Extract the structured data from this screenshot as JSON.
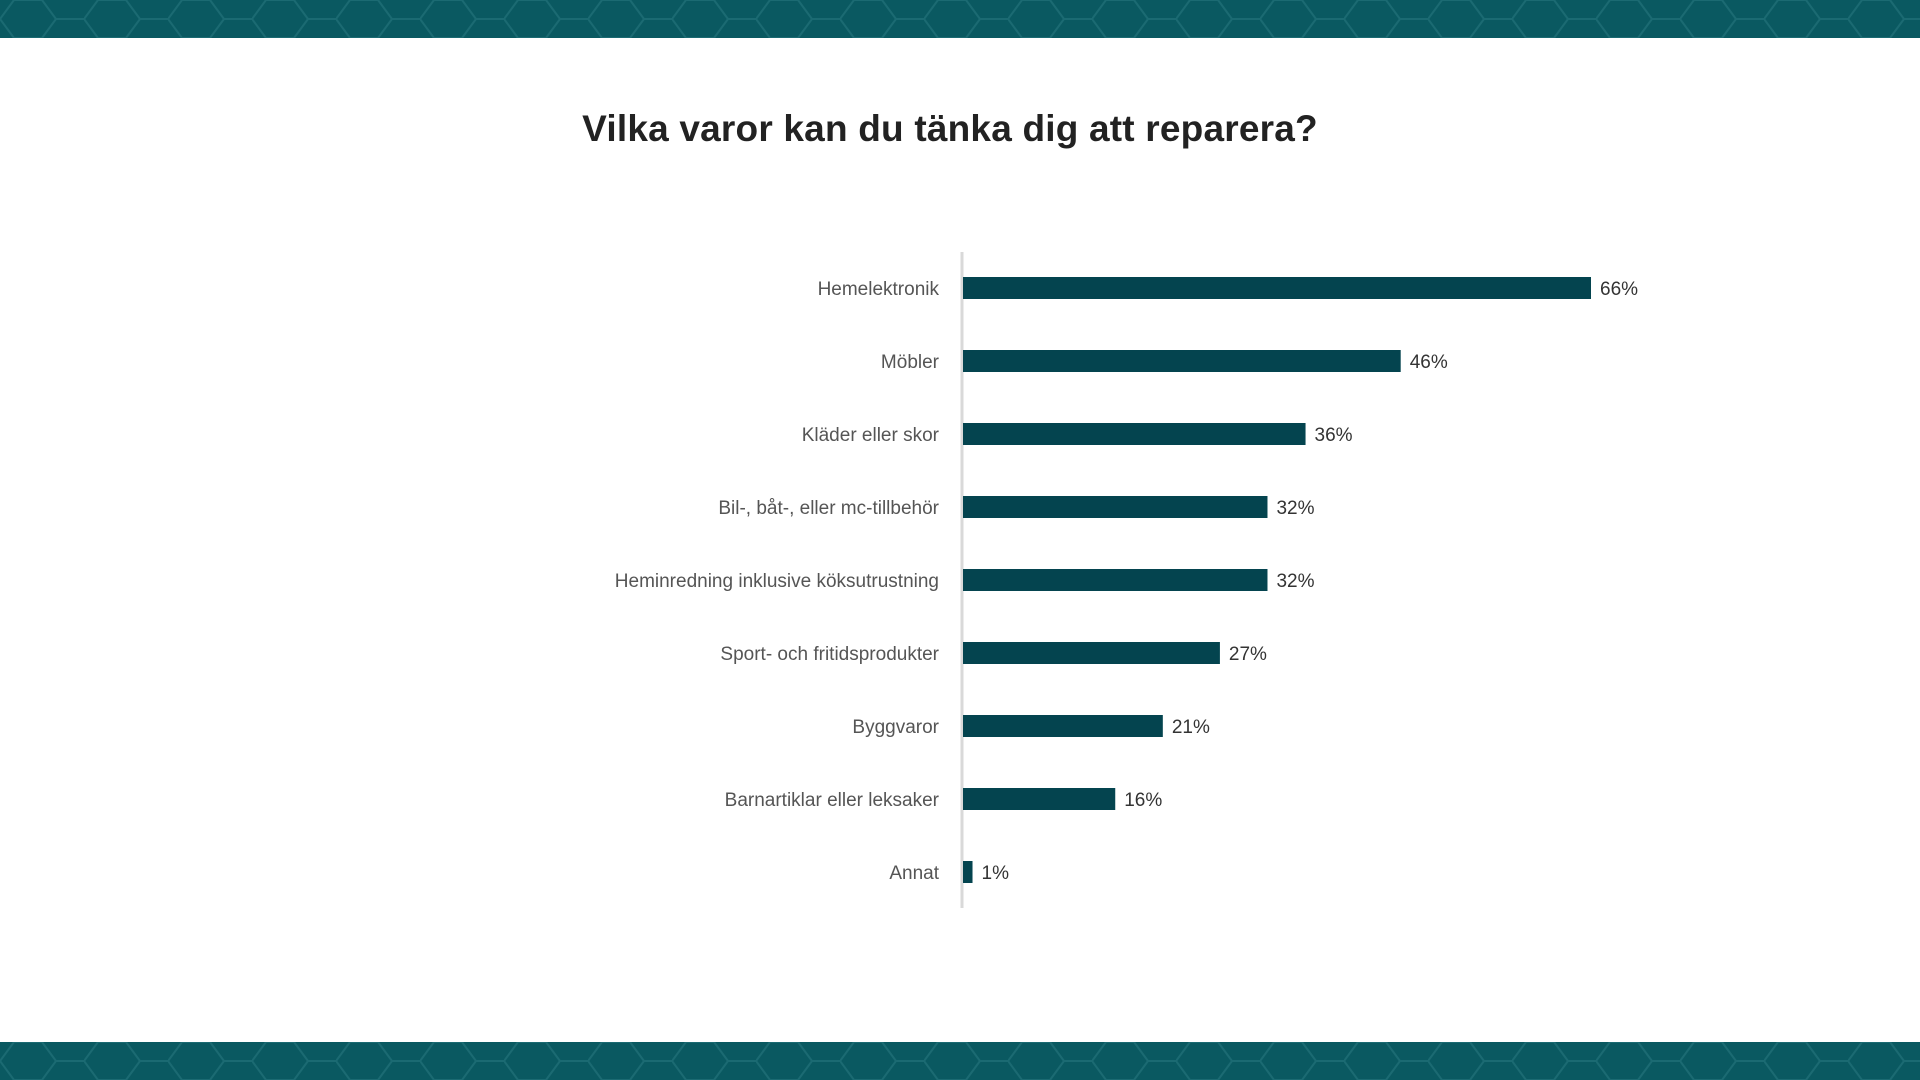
{
  "colors": {
    "band": "#0a5961",
    "band_pattern": "#1b6a72",
    "bar": "#04444f",
    "axis": "#d9d9d9"
  },
  "chart_data": {
    "type": "bar",
    "orientation": "horizontal",
    "title": "Vilka varor kan du tänka dig att reparera?",
    "categories": [
      "Hemelektronik",
      "Möbler",
      "Kläder eller skor",
      "Bil-, båt-, eller mc-tillbehör",
      "Heminredning inklusive köksutrustning",
      "Sport- och fritidsprodukter",
      "Byggvaror",
      "Barnartiklar eller leksaker",
      "Annat"
    ],
    "values": [
      66,
      46,
      36,
      32,
      32,
      27,
      21,
      16,
      1
    ],
    "value_labels": [
      "66%",
      "46%",
      "36%",
      "32%",
      "32%",
      "27%",
      "21%",
      "16%",
      "1%"
    ],
    "unit": "%",
    "xlim": [
      0,
      66
    ],
    "grid": false,
    "legend": "none"
  }
}
